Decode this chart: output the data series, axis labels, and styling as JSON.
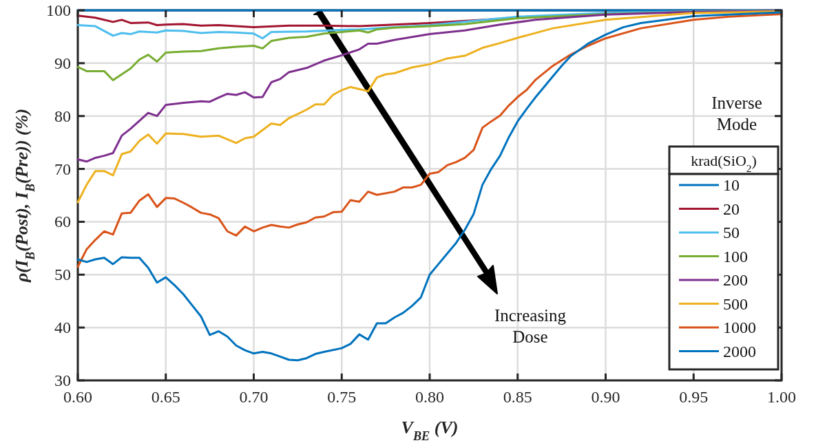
{
  "chart_data": {
    "type": "line",
    "xlabel": "V$_{BE}$ (V)",
    "ylabel": "ρ(I$_{B}$(Post), I$_{B}$(Pre)) (%)",
    "legend_title": "krad(SiO$_{2}$)",
    "legend": "bottom right",
    "grid": true,
    "line_style": "solid",
    "xlim": [
      0.6,
      1.0
    ],
    "ylim": [
      30,
      100
    ],
    "xticks": [
      {
        "value": 0.6,
        "label": "0.60"
      },
      {
        "value": 0.65,
        "label": "0.65"
      },
      {
        "value": 0.7,
        "label": "0.70"
      },
      {
        "value": 0.75,
        "label": "0.75"
      },
      {
        "value": 0.8,
        "label": "0.80"
      },
      {
        "value": 0.85,
        "label": "0.85"
      },
      {
        "value": 0.9,
        "label": "0.90"
      },
      {
        "value": 0.95,
        "label": "0.95"
      },
      {
        "value": 1.0,
        "label": "1.00"
      }
    ],
    "yticks": [
      30,
      40,
      50,
      60,
      70,
      80,
      90,
      100
    ],
    "annotations": [
      "Increasing\nDose",
      "Inverse\nMode"
    ],
    "series": [
      {
        "name": "10",
        "color": "#0072bd",
        "x": [
          0.6,
          0.7,
          0.8,
          0.9,
          1.0
        ],
        "values": [
          100,
          100,
          100,
          100,
          100
        ]
      },
      {
        "name": "20",
        "color": "#a2142f",
        "x": [
          0.6,
          0.61,
          0.62,
          0.625,
          0.63,
          0.64,
          0.645,
          0.65,
          0.66,
          0.67,
          0.68,
          0.69,
          0.7,
          0.72,
          0.74,
          0.76,
          0.78,
          0.8,
          0.85,
          0.9,
          0.95,
          1.0
        ],
        "values": [
          99,
          98.6,
          97.8,
          98.2,
          97.6,
          97.7,
          97.2,
          97.3,
          97.4,
          97.1,
          97.2,
          97.0,
          96.8,
          97.1,
          97.1,
          97.0,
          97.3,
          97.6,
          98.6,
          99.4,
          99.8,
          100
        ]
      },
      {
        "name": "50",
        "color": "#4dbeee",
        "x": [
          0.6,
          0.61,
          0.62,
          0.625,
          0.63,
          0.635,
          0.645,
          0.65,
          0.66,
          0.67,
          0.68,
          0.69,
          0.7,
          0.705,
          0.71,
          0.73,
          0.75,
          0.76,
          0.78,
          0.8,
          0.85,
          0.9,
          0.95,
          1.0
        ],
        "values": [
          97.2,
          97.0,
          95.2,
          95.7,
          95.5,
          96,
          95.8,
          96.2,
          96.1,
          95.7,
          95.9,
          95.8,
          95.6,
          94.7,
          95.9,
          96.0,
          96.3,
          96.4,
          96.8,
          97.2,
          98.8,
          99.5,
          99.8,
          100
        ]
      },
      {
        "name": "100",
        "color": "#77ac30",
        "x": [
          0.6,
          0.605,
          0.615,
          0.62,
          0.63,
          0.635,
          0.64,
          0.645,
          0.65,
          0.66,
          0.67,
          0.68,
          0.69,
          0.7,
          0.705,
          0.71,
          0.72,
          0.73,
          0.74,
          0.75,
          0.76,
          0.765,
          0.77,
          0.78,
          0.8,
          0.82,
          0.85,
          0.9,
          0.95,
          1.0
        ],
        "values": [
          89.3,
          88.5,
          88.5,
          86.8,
          89,
          90.7,
          91.6,
          90.3,
          92,
          92.2,
          92.3,
          92.8,
          93.1,
          93.3,
          92.8,
          94.2,
          94.8,
          95.0,
          95.6,
          95.9,
          96.2,
          95.8,
          96.4,
          96.7,
          97.0,
          97.4,
          98.5,
          99.3,
          99.7,
          99.9
        ]
      },
      {
        "name": "200",
        "color": "#7e2f8e",
        "x": [
          0.6,
          0.605,
          0.61,
          0.615,
          0.62,
          0.625,
          0.63,
          0.64,
          0.645,
          0.65,
          0.66,
          0.67,
          0.675,
          0.68,
          0.685,
          0.69,
          0.695,
          0.7,
          0.705,
          0.71,
          0.715,
          0.72,
          0.73,
          0.74,
          0.75,
          0.76,
          0.765,
          0.77,
          0.78,
          0.8,
          0.82,
          0.84,
          0.86,
          0.9,
          0.95,
          1.0
        ],
        "values": [
          71.8,
          71.4,
          72.1,
          72.5,
          73,
          76.3,
          77.6,
          80.6,
          80,
          82.1,
          82.5,
          82.8,
          82.7,
          83.5,
          84.2,
          84,
          84.5,
          83.5,
          83.6,
          86.4,
          87,
          88.3,
          89.1,
          90.5,
          91.5,
          92.6,
          93.7,
          93.7,
          94.4,
          95.5,
          96.2,
          97.3,
          98.2,
          99.2,
          99.7,
          99.9
        ]
      },
      {
        "name": "500",
        "color": "#edb120",
        "x": [
          0.6,
          0.605,
          0.61,
          0.615,
          0.62,
          0.625,
          0.63,
          0.635,
          0.64,
          0.645,
          0.65,
          0.66,
          0.67,
          0.68,
          0.69,
          0.695,
          0.7,
          0.71,
          0.715,
          0.72,
          0.73,
          0.735,
          0.74,
          0.745,
          0.75,
          0.755,
          0.76,
          0.765,
          0.77,
          0.775,
          0.78,
          0.79,
          0.8,
          0.81,
          0.82,
          0.83,
          0.84,
          0.85,
          0.87,
          0.9,
          0.95,
          1.0
        ],
        "values": [
          63.7,
          67,
          69.6,
          69.6,
          68.8,
          72.8,
          73.3,
          75.3,
          76.5,
          74.8,
          76.7,
          76.6,
          76.1,
          76.3,
          74.9,
          75.8,
          76.1,
          78.6,
          78.3,
          79.6,
          81.2,
          82.2,
          82.2,
          84,
          84.9,
          85.5,
          85.1,
          84.7,
          87.3,
          87.9,
          88.1,
          89.2,
          89.8,
          90.9,
          91.4,
          92.9,
          93.8,
          94.8,
          96.6,
          98.2,
          99.5,
          99.8
        ]
      },
      {
        "name": "1000",
        "color": "#d95319",
        "x": [
          0.6,
          0.605,
          0.61,
          0.615,
          0.62,
          0.625,
          0.63,
          0.635,
          0.64,
          0.645,
          0.65,
          0.655,
          0.66,
          0.665,
          0.67,
          0.675,
          0.68,
          0.685,
          0.69,
          0.695,
          0.7,
          0.705,
          0.71,
          0.715,
          0.72,
          0.725,
          0.73,
          0.735,
          0.74,
          0.745,
          0.75,
          0.755,
          0.76,
          0.765,
          0.77,
          0.78,
          0.785,
          0.79,
          0.795,
          0.8,
          0.805,
          0.81,
          0.815,
          0.82,
          0.825,
          0.83,
          0.835,
          0.84,
          0.845,
          0.85,
          0.855,
          0.86,
          0.87,
          0.88,
          0.89,
          0.9,
          0.92,
          0.95,
          0.97,
          1.0
        ],
        "values": [
          51.5,
          54.8,
          56.6,
          58.2,
          57.6,
          61.6,
          61.7,
          64,
          65.2,
          62.8,
          64.5,
          64.4,
          63.6,
          62.7,
          61.7,
          61.4,
          60.7,
          58.2,
          57.4,
          59.1,
          58.2,
          58.9,
          59.4,
          59.1,
          58.9,
          59.5,
          59.9,
          60.8,
          61,
          61.8,
          61.9,
          64.1,
          63.8,
          65.7,
          65.1,
          65.7,
          66.5,
          66.5,
          67,
          69.1,
          69.4,
          70.7,
          71.3,
          72.1,
          73.6,
          77.8,
          79,
          80.1,
          82,
          83.6,
          84.9,
          86.8,
          89.5,
          91.6,
          93.3,
          94.7,
          96.6,
          98.2,
          98.8,
          99.3
        ]
      },
      {
        "name": "2000",
        "color": "#0072bd",
        "x": [
          0.6,
          0.605,
          0.61,
          0.615,
          0.62,
          0.625,
          0.63,
          0.635,
          0.64,
          0.645,
          0.65,
          0.655,
          0.66,
          0.665,
          0.67,
          0.675,
          0.68,
          0.685,
          0.69,
          0.695,
          0.7,
          0.705,
          0.71,
          0.715,
          0.72,
          0.725,
          0.73,
          0.735,
          0.74,
          0.75,
          0.755,
          0.76,
          0.765,
          0.77,
          0.775,
          0.78,
          0.785,
          0.79,
          0.795,
          0.8,
          0.805,
          0.81,
          0.815,
          0.82,
          0.825,
          0.83,
          0.835,
          0.84,
          0.845,
          0.85,
          0.855,
          0.86,
          0.865,
          0.87,
          0.875,
          0.88,
          0.89,
          0.9,
          0.91,
          0.92,
          0.95,
          1.0
        ],
        "values": [
          52.9,
          52.4,
          52.9,
          53.2,
          52,
          53.3,
          53.2,
          53.2,
          51.3,
          48.5,
          49.5,
          48,
          46.3,
          44.2,
          42.1,
          38.6,
          39.3,
          38.3,
          36.6,
          35.7,
          35.1,
          35.4,
          35.1,
          34.5,
          33.9,
          33.8,
          34.2,
          35,
          35.4,
          36.1,
          36.9,
          38.7,
          37.7,
          40.8,
          40.8,
          41.9,
          42.8,
          44.1,
          45.7,
          50,
          52,
          54,
          56,
          58.5,
          61.5,
          67,
          70,
          72.5,
          76,
          79,
          81.3,
          83.5,
          85.5,
          87.5,
          89.5,
          91.3,
          93.7,
          95.4,
          96.8,
          97.6,
          98.9,
          99.6
        ]
      }
    ]
  }
}
